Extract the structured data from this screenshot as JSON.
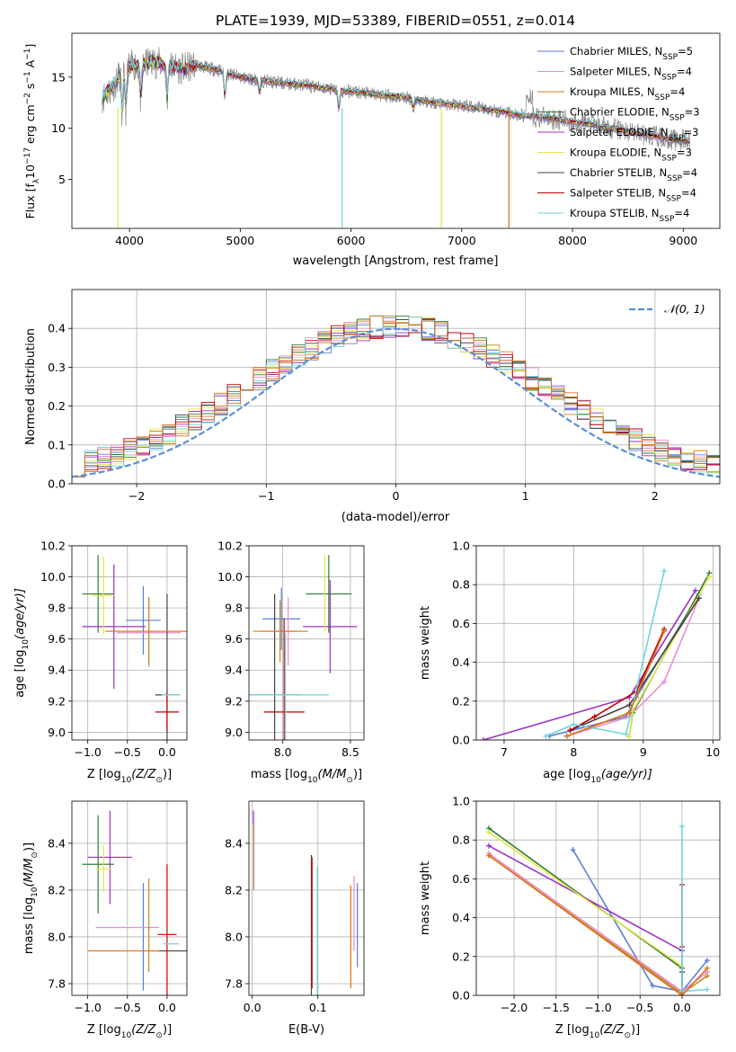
{
  "chart_data": [
    {
      "type": "line",
      "title": "PLATE=1939, MJD=53389, FIBERID=0551, z=0.014",
      "xlabel": "wavelength [Angstrom, rest frame]",
      "ylabel": "Flux [f",
      "ylabel_rest": "10",
      "ylabel_unit": " erg cm",
      "ylabel_tail": " s",
      "ylabel_A": " A",
      "ylabel_end": "]",
      "ylabel_exp1": "−17",
      "ylabel_exp2": "−2",
      "ylabel_exp3": "−1",
      "ylabel_exp4": "−1",
      "xlim": [
        3480,
        9330
      ],
      "ylim": [
        0.2,
        19.3
      ],
      "xticks": [
        "4000",
        "5000",
        "6000",
        "7000",
        "8000",
        "9000"
      ],
      "yticks": [
        "5",
        "10",
        "15"
      ],
      "legend_position": "upper right",
      "series": [
        {
          "name": "Chabrier MILES, N",
          "n": "=5",
          "color": "#5b7fd6",
          "values_note": ""
        },
        {
          "name": "Salpeter MILES, N",
          "n": "=4",
          "color": "#e88fd0"
        },
        {
          "name": "Kroupa MILES, N",
          "n": "=4",
          "color": "#c28a1e"
        },
        {
          "name": "Chabrier ELODIE, N",
          "n": "=3",
          "color": "#2e7d32"
        },
        {
          "name": "Salpeter ELODIE, N",
          "n": "=3",
          "color": "#9b30c8"
        },
        {
          "name": "Kroupa ELODIE, N",
          "n": "=3",
          "color": "#e6e64a"
        },
        {
          "name": "Chabrier STELIB, N",
          "n": "=4",
          "color": "#444444"
        },
        {
          "name": "Salpeter STELIB, N",
          "n": "=4",
          "color": "#c00000"
        },
        {
          "name": "Kroupa STELIB, N",
          "n": "=4",
          "color": "#70d4dc"
        }
      ],
      "legend_sub": "SSP",
      "spectrum": {
        "x": [
          3750,
          3800,
          3850,
          3900,
          3950,
          4000,
          4050,
          4100,
          4150,
          4200,
          4300,
          4400,
          4500,
          4600,
          4700,
          4800,
          4900,
          5000,
          5100,
          5200,
          5300,
          5400,
          5500,
          5600,
          5700,
          5800,
          5900,
          6000,
          6100,
          6200,
          6300,
          6400,
          6500,
          6600,
          6700,
          6800,
          6900,
          7000,
          7100,
          7200,
          7300,
          7400,
          7500,
          7600,
          7700,
          7800,
          7900,
          8000,
          8100,
          8200,
          8300,
          8400,
          8500,
          8600,
          8700,
          8800,
          8900,
          9000,
          9050
        ],
        "y": [
          13.0,
          13.5,
          14.0,
          15.0,
          15.5,
          16.0,
          16.2,
          16.0,
          16.3,
          16.5,
          16.3,
          16.0,
          15.8,
          16.2,
          15.9,
          15.7,
          15.3,
          15.0,
          14.8,
          14.7,
          14.5,
          14.4,
          14.3,
          14.2,
          14.0,
          13.9,
          13.6,
          13.6,
          13.5,
          13.3,
          13.2,
          13.1,
          13.0,
          12.8,
          12.6,
          12.5,
          12.3,
          12.2,
          12.0,
          11.9,
          11.7,
          11.6,
          11.3,
          11.2,
          11.1,
          11.0,
          10.8,
          10.6,
          10.5,
          10.3,
          10.1,
          9.9,
          9.7,
          9.5,
          9.3,
          9.1,
          8.9,
          8.8,
          8.7
        ]
      }
    },
    {
      "type": "line",
      "xlabel": "(data-model)/error",
      "ylabel": "Normed distribution",
      "xlim": [
        -2.5,
        2.5
      ],
      "ylim": [
        0.0,
        0.5
      ],
      "xticks": [
        "−2",
        "−1",
        "0",
        "1",
        "2"
      ],
      "yticks": [
        "0.0",
        "0.1",
        "0.2",
        "0.3",
        "0.4"
      ],
      "legend": "𝒩(0, 1)",
      "legend_color": "#5b8fd6",
      "hist_edges": [
        -2.5,
        -2.4,
        -2.3,
        -2.2,
        -2.1,
        -2.0,
        -1.9,
        -1.8,
        -1.7,
        -1.6,
        -1.5,
        -1.4,
        -1.3,
        -1.2,
        -1.1,
        -1.0,
        -0.9,
        -0.8,
        -0.7,
        -0.6,
        -0.5,
        -0.4,
        -0.3,
        -0.2,
        -0.1,
        0.0,
        0.1,
        0.2,
        0.3,
        0.4,
        0.5,
        0.6,
        0.7,
        0.8,
        0.9,
        1.0,
        1.1,
        1.2,
        1.3,
        1.4,
        1.5,
        1.6,
        1.7,
        1.8,
        1.9,
        2.0,
        2.1,
        2.2,
        2.3,
        2.4,
        2.5
      ]
    },
    {
      "type": "scatter",
      "xlabel": "Z [log",
      "xlabel_sub": "10",
      "xlabel_rest": "(Z/Z",
      "xlabel_end": ")]",
      "ylabel": "age  [log",
      "ylabel_rest": "(age/yr)]",
      "xlim": [
        -1.2,
        0.25
      ],
      "ylim": [
        8.95,
        10.2
      ],
      "xticks": [
        "−1.0",
        "−0.5",
        "0.0"
      ],
      "yticks": [
        "9.0",
        "9.2",
        "9.4",
        "9.6",
        "9.8",
        "10.0",
        "10.2"
      ],
      "points": [
        {
          "x": -0.3,
          "y": 9.72,
          "xerr": 0.22,
          "yerr": 0.22,
          "color": "#5b7fd6"
        },
        {
          "x": -0.23,
          "y": 9.64,
          "xerr": 0.4,
          "yerr": 0.22,
          "color": "#e88fd0"
        },
        {
          "x": -0.23,
          "y": 9.65,
          "xerr": 0.55,
          "yerr": 0.22,
          "color": "#c28a1e"
        },
        {
          "x": -0.87,
          "y": 9.89,
          "xerr": 0.2,
          "yerr": 0.25,
          "color": "#2e7d32"
        },
        {
          "x": -0.67,
          "y": 9.68,
          "xerr": 0.4,
          "yerr": 0.4,
          "color": "#9b30c8"
        },
        {
          "x": -0.8,
          "y": 9.88,
          "xerr": 0.15,
          "yerr": 0.25,
          "color": "#e6e64a"
        },
        {
          "x": 0.0,
          "y": 9.24,
          "xerr": 0.15,
          "yerr": 0.65,
          "color": "#444444"
        },
        {
          "x": 0.0,
          "y": 9.13,
          "xerr": 0.15,
          "yerr": 0.13,
          "color": "#c00000"
        },
        {
          "x": 0.05,
          "y": 9.24,
          "xerr": 0.12,
          "yerr": 0.0,
          "color": "#70d4dc"
        },
        {
          "x": -0.25,
          "y": 9.65,
          "xerr": 0.5,
          "yerr": 0.0,
          "color": "#e07020"
        }
      ]
    },
    {
      "type": "scatter",
      "xlabel": "mass [log",
      "xlabel_rest": "(M/M",
      "xlabel_end": ")]",
      "xlim": [
        7.75,
        8.6
      ],
      "ylim": [
        8.95,
        10.2
      ],
      "xticks": [
        "8.0",
        "8.5"
      ],
      "yticks": [
        "9.0",
        "9.2",
        "9.4",
        "9.6",
        "9.8",
        "10.0",
        "10.2"
      ],
      "points": [
        {
          "x": 7.99,
          "y": 9.73,
          "xerr": 0.14,
          "yerr": 0.2,
          "color": "#5b7fd6"
        },
        {
          "x": 8.04,
          "y": 9.65,
          "xerr": 0.15,
          "yerr": 0.22,
          "color": "#e88fd0"
        },
        {
          "x": 7.98,
          "y": 9.65,
          "xerr": 0.2,
          "yerr": 0.2,
          "color": "#c28a1e"
        },
        {
          "x": 8.34,
          "y": 9.89,
          "xerr": 0.17,
          "yerr": 0.25,
          "color": "#2e7d32"
        },
        {
          "x": 8.35,
          "y": 9.68,
          "xerr": 0.2,
          "yerr": 0.3,
          "color": "#9b30c8"
        },
        {
          "x": 8.31,
          "y": 9.89,
          "xerr": 0.0,
          "yerr": 0.25,
          "color": "#e6e64a"
        },
        {
          "x": 7.94,
          "y": 9.24,
          "xerr": 0.2,
          "yerr": 0.65,
          "color": "#444444"
        },
        {
          "x": 8.01,
          "y": 9.13,
          "xerr": 0.15,
          "yerr": 0.6,
          "color": "#c00000"
        },
        {
          "x": 8.02,
          "y": 9.24,
          "xerr": 0.32,
          "yerr": 0.4,
          "color": "#70d4dc"
        },
        {
          "x": 7.97,
          "y": 9.65,
          "xerr": 0.13,
          "yerr": 0.0,
          "color": "#e07020"
        }
      ]
    },
    {
      "type": "line",
      "xlabel": "age  [log",
      "xlabel_rest": "(age/yr)]",
      "ylabel": "mass weight",
      "xlim": [
        6.6,
        10.1
      ],
      "ylim": [
        0.0,
        1.0
      ],
      "xticks": [
        "7",
        "8",
        "9",
        "10"
      ],
      "yticks": [
        "0.0",
        "0.2",
        "0.4",
        "0.6",
        "0.8",
        "1.0"
      ],
      "series": [
        {
          "color": "#5b7fd6",
          "x": [
            7.65,
            8.75,
            8.9,
            9.8
          ],
          "y": [
            0.02,
            0.12,
            0.22,
            0.75
          ]
        },
        {
          "color": "#e88fd0",
          "x": [
            7.9,
            8.8,
            9.3,
            9.8
          ],
          "y": [
            0.02,
            0.12,
            0.3,
            0.73
          ]
        },
        {
          "color": "#c28a1e",
          "x": [
            7.9,
            8.8,
            9.3
          ],
          "y": [
            0.02,
            0.14,
            0.57
          ]
        },
        {
          "color": "#2e7d32",
          "x": [
            8.8,
            8.85,
            9.95
          ],
          "y": [
            0.02,
            0.14,
            0.86
          ]
        },
        {
          "color": "#9b30c8",
          "x": [
            6.7,
            8.8,
            9.75
          ],
          "y": [
            0.0,
            0.22,
            0.77
          ]
        },
        {
          "color": "#e6e64a",
          "x": [
            8.8,
            8.85,
            9.95
          ],
          "y": [
            0.02,
            0.15,
            0.84
          ]
        },
        {
          "color": "#444444",
          "x": [
            7.95,
            8.8,
            9.8
          ],
          "y": [
            0.05,
            0.18,
            0.73
          ]
        },
        {
          "color": "#c00000",
          "x": [
            7.95,
            8.3,
            8.9,
            9.3
          ],
          "y": [
            0.05,
            0.12,
            0.25,
            0.57
          ]
        },
        {
          "color": "#70d4dc",
          "x": [
            7.6,
            8.0,
            8.75,
            9.3
          ],
          "y": [
            0.02,
            0.08,
            0.03,
            0.87
          ]
        },
        {
          "color": "#e07020",
          "x": [
            7.9,
            8.8,
            9.3
          ],
          "y": [
            0.02,
            0.14,
            0.56
          ]
        }
      ]
    },
    {
      "type": "scatter",
      "xlabel": "Z [log",
      "xlabel_rest": "(Z/Z",
      "xlabel_end": ")]",
      "ylabel": "mass [log",
      "ylabel_rest": "(M/M",
      "ylabel_end": ")]",
      "xlim": [
        -1.2,
        0.25
      ],
      "ylim": [
        7.75,
        8.58
      ],
      "xticks": [
        "−1.0",
        "−0.5",
        "0.0"
      ],
      "yticks": [
        "7.8",
        "8.0",
        "8.2",
        "8.4"
      ],
      "points": [
        {
          "x": -0.3,
          "y": 8.0,
          "xerr": 0.0,
          "yerr": 0.23,
          "color": "#5b7fd6"
        },
        {
          "x": -0.5,
          "y": 8.04,
          "xerr": 0.4,
          "yerr": 0.0,
          "color": "#e88fd0"
        },
        {
          "x": -0.23,
          "y": 8.05,
          "xerr": 0.0,
          "yerr": 0.2,
          "color": "#c28a1e"
        },
        {
          "x": -0.87,
          "y": 8.31,
          "xerr": 0.2,
          "yerr": 0.21,
          "color": "#2e7d32"
        },
        {
          "x": -0.72,
          "y": 8.34,
          "xerr": 0.28,
          "yerr": 0.2,
          "color": "#9b30c8"
        },
        {
          "x": -0.8,
          "y": 8.29,
          "xerr": 0.1,
          "yerr": 0.1,
          "color": "#e6e64a"
        },
        {
          "x": 0.03,
          "y": 7.94,
          "xerr": 0.22,
          "yerr": 0.0,
          "color": "#444444"
        },
        {
          "x": 0.0,
          "y": 8.01,
          "xerr": 0.12,
          "yerr": 0.3,
          "color": "#c00000"
        },
        {
          "x": 0.05,
          "y": 7.97,
          "xerr": 0.1,
          "yerr": 0.0,
          "color": "#70d4dc"
        },
        {
          "x": -0.55,
          "y": 7.94,
          "xerr": 0.45,
          "yerr": 0.0,
          "color": "#e07020"
        }
      ]
    },
    {
      "type": "scatter",
      "xlabel": "E(B-V)",
      "xlim": [
        -0.005,
        0.17
      ],
      "ylim": [
        7.75,
        8.58
      ],
      "xticks": [
        "0.0",
        "0.1"
      ],
      "yticks": [
        "7.8",
        "8.0",
        "8.2",
        "8.4"
      ],
      "points": [
        {
          "x": 0.002,
          "y": 8.37,
          "xerr": 0.0,
          "yerr": 0.17,
          "color": "#9b30c8"
        },
        {
          "x": 0.001,
          "y": 8.34,
          "xerr": 0.0,
          "yerr": 0.14,
          "color": "#e6e64a"
        },
        {
          "x": 0.09,
          "y": 8.05,
          "xerr": 0.0,
          "yerr": 0.3,
          "color": "#444444"
        },
        {
          "x": 0.091,
          "y": 8.06,
          "xerr": 0.0,
          "yerr": 0.28,
          "color": "#c00000"
        },
        {
          "x": 0.099,
          "y": 8.02,
          "xerr": 0.0,
          "yerr": 0.28,
          "color": "#70d4dc"
        },
        {
          "x": 0.15,
          "y": 8.0,
          "xerr": 0.0,
          "yerr": 0.22,
          "color": "#e07020"
        },
        {
          "x": 0.155,
          "y": 8.1,
          "xerr": 0.0,
          "yerr": 0.16,
          "color": "#e88fd0"
        },
        {
          "x": 0.16,
          "y": 8.05,
          "xerr": 0.0,
          "yerr": 0.18,
          "color": "#5b7fd6"
        }
      ]
    },
    {
      "type": "line",
      "xlabel": "Z [log",
      "xlabel_rest": "(Z/Z",
      "xlabel_end": ")]",
      "ylabel": "mass weight",
      "xlim": [
        -2.45,
        0.45
      ],
      "ylim": [
        0.0,
        1.0
      ],
      "xticks": [
        "−2.0",
        "−1.5",
        "−1.0",
        "−0.5",
        "0.0"
      ],
      "yticks": [
        "0.0",
        "0.2",
        "0.4",
        "0.6",
        "0.8",
        "1.0"
      ],
      "series": [
        {
          "color": "#5b7fd6",
          "x": [
            -1.3,
            -0.35,
            0.0,
            0.3
          ],
          "y": [
            0.75,
            0.05,
            0.02,
            0.18
          ]
        },
        {
          "color": "#e88fd0",
          "x": [
            -2.3,
            0.0,
            0.3
          ],
          "y": [
            0.73,
            0.02,
            0.12
          ]
        },
        {
          "color": "#c28a1e",
          "x": [
            -2.3,
            0.0,
            0.3
          ],
          "y": [
            0.72,
            0.01,
            0.1
          ]
        },
        {
          "color": "#2e7d32",
          "x": [
            -2.3,
            0.0
          ],
          "y": [
            0.86,
            0.14
          ]
        },
        {
          "color": "#9b30c8",
          "x": [
            -2.3,
            0.0,
            0.0
          ],
          "y": [
            0.77,
            0.23,
            0.0
          ]
        },
        {
          "color": "#e6e64a",
          "x": [
            -2.3,
            0.0
          ],
          "y": [
            0.84,
            0.15
          ]
        },
        {
          "color": "#444444",
          "x": [
            0.0,
            0.0
          ],
          "y": [
            0.12,
            0.0
          ]
        },
        {
          "color": "#c00000",
          "x": [
            0.0,
            0.0
          ],
          "y": [
            0.57,
            0.25
          ]
        },
        {
          "color": "#70d4dc",
          "x": [
            0.0,
            0.0,
            0.3
          ],
          "y": [
            0.87,
            0.02,
            0.03
          ]
        },
        {
          "color": "#e07020",
          "x": [
            -2.3,
            0.0,
            0.3
          ],
          "y": [
            0.72,
            0.0,
            0.14
          ]
        }
      ]
    }
  ]
}
